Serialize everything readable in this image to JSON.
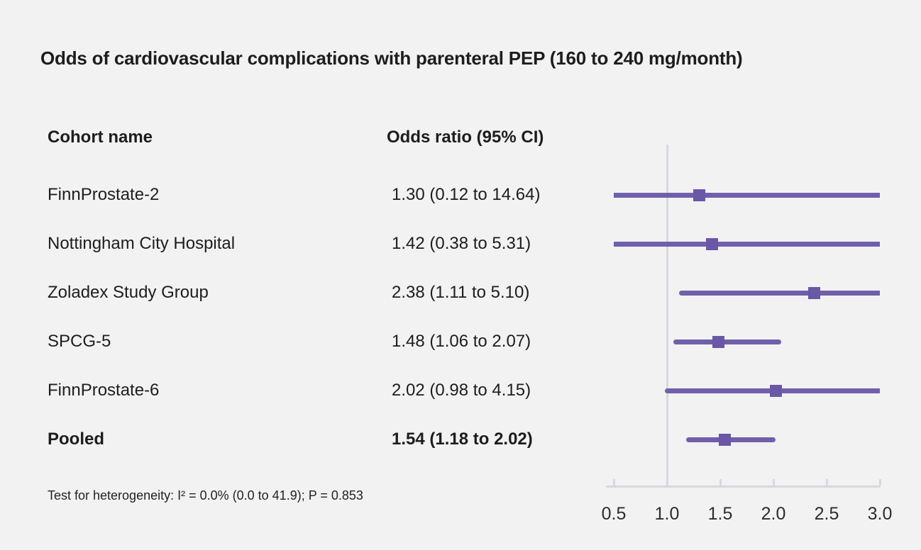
{
  "chart_data": {
    "type": "forest",
    "title": "Odds of cardiovascular complications with parenteral PEP (160 to 240 mg/month)",
    "columns": {
      "cohort": "Cohort name",
      "odds": "Odds ratio (95% CI)"
    },
    "rows": [
      {
        "name": "FinnProstate-2",
        "label": "1.30 (0.12 to 14.64)",
        "est": 1.3,
        "lo": 0.12,
        "hi": 14.64,
        "bold": false
      },
      {
        "name": "Nottingham City Hospital",
        "label": "1.42 (0.38 to 5.31)",
        "est": 1.42,
        "lo": 0.38,
        "hi": 5.31,
        "bold": false
      },
      {
        "name": "Zoladex Study Group",
        "label": "2.38 (1.11 to 5.10)",
        "est": 2.38,
        "lo": 1.11,
        "hi": 5.1,
        "bold": false
      },
      {
        "name": "SPCG-5",
        "label": "1.48 (1.06 to 2.07)",
        "est": 1.48,
        "lo": 1.06,
        "hi": 2.07,
        "bold": false
      },
      {
        "name": "FinnProstate-6",
        "label": "2.02 (0.98 to 4.15)",
        "est": 2.02,
        "lo": 0.98,
        "hi": 4.15,
        "bold": false
      },
      {
        "name": "Pooled",
        "label": "1.54 (1.18 to 2.02)",
        "est": 1.54,
        "lo": 1.18,
        "hi": 2.02,
        "bold": true
      }
    ],
    "axis": {
      "min": 0.5,
      "max": 3.0,
      "reference": 1.0,
      "tick_values": [
        0.5,
        1.0,
        1.5,
        2.0,
        2.5,
        3.0
      ],
      "tick_labels": [
        "0.5",
        "1.0",
        "1.5",
        "2.0",
        "2.5",
        "3.0"
      ]
    },
    "footnote": "Test for heterogeneity: I² = 0.0% (0.0 to 41.9); P = 0.853",
    "colors": {
      "background": "#f2f2f2",
      "ci_line": "#7060ab",
      "marker": "#6a57a6",
      "axis": "#d6d9e0",
      "text": "#1d1d1d"
    }
  }
}
